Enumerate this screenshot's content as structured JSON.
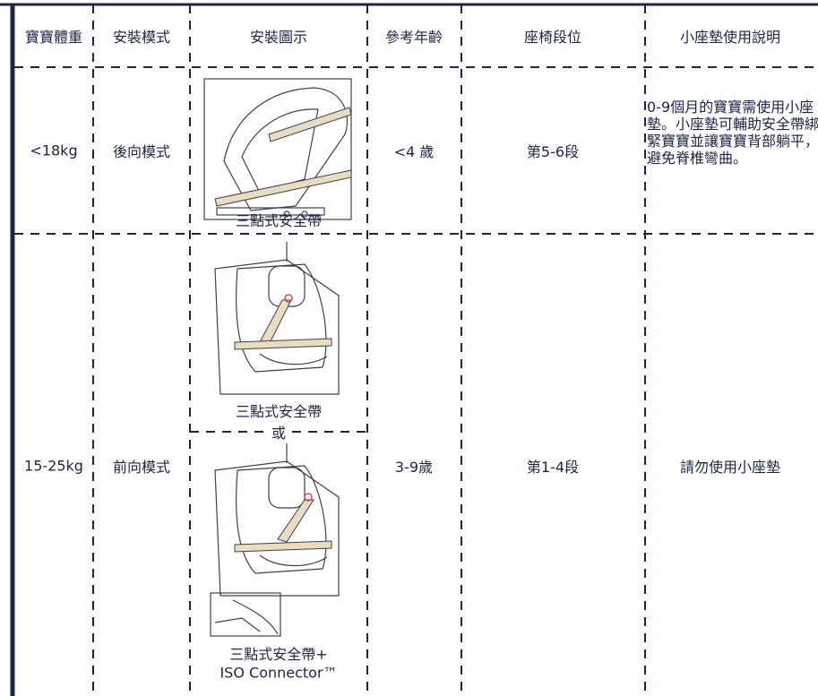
{
  "table": {
    "headers": [
      "寶寶體重",
      "安裝模式",
      "安裝圖示",
      "參考年齡",
      "座椅段位",
      "小座墊使用說明"
    ],
    "rows": [
      {
        "weight": "<18kg",
        "mode": "後向模式",
        "install": {
          "captions": [
            "三點式安全帶"
          ]
        },
        "age": "<4 歲",
        "position": "第5-6段",
        "usage": "0-9個月的寶寶需使用小座墊。小座墊可輔助安全帶綁緊寶寶並讓寶寶背部躺平，避免脊椎彎曲。"
      },
      {
        "weight": "15-25kg",
        "mode": "前向模式",
        "install": {
          "captions": [
            "三點式安全帶",
            "三點式安全帶+",
            "ISO Connector™"
          ],
          "separator": "或"
        },
        "age": "3-9歲",
        "position": "第1-4段",
        "usage": "請勿使用小座墊"
      }
    ]
  }
}
